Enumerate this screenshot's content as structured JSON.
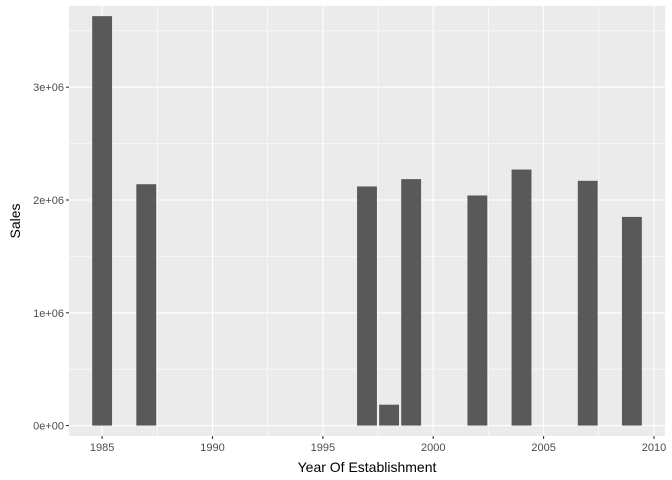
{
  "chart_data": {
    "type": "bar",
    "xlabel": "Year Of Establishment",
    "ylabel": "Sales",
    "x": [
      1985,
      1987,
      1997,
      1998,
      1999,
      2002,
      2004,
      2007,
      2009
    ],
    "values": [
      3630000,
      2140000,
      2120000,
      185000,
      2185000,
      2040000,
      2270000,
      2170000,
      1850000
    ],
    "bar_width_years": 0.9,
    "xlim": [
      1983.5,
      2010.5
    ],
    "ylim": [
      -92500,
      3720000
    ],
    "x_ticks": [
      1985,
      1990,
      1995,
      2000,
      2005,
      2010
    ],
    "x_tick_labels": [
      "1985",
      "1990",
      "1995",
      "2000",
      "2005",
      "2010"
    ],
    "y_ticks": [
      0,
      1000000,
      2000000,
      3000000
    ],
    "y_tick_labels": [
      "0e+00",
      "1e+06",
      "2e+06",
      "3e+06"
    ],
    "grid": true,
    "colors": {
      "bar": "#595959",
      "panel": "#ebebeb",
      "grid_major": "#ffffff",
      "tick": "#333333",
      "tick_text": "#4d4d4d"
    }
  }
}
